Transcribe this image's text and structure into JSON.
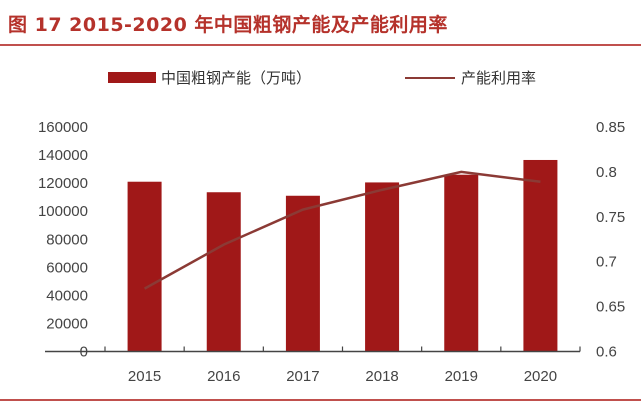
{
  "title": "图 17 2015-2020 年中国粗钢产能及产能利用率",
  "chart_data": {
    "type": "bar+line",
    "categories": [
      "2015",
      "2016",
      "2017",
      "2018",
      "2019",
      "2020"
    ],
    "series": [
      {
        "name": "中国粗钢产能（万吨）",
        "type": "bar",
        "axis": "left",
        "color": "#a01818",
        "values": [
          121000,
          113500,
          111000,
          120500,
          126000,
          136500
        ]
      },
      {
        "name": "产能利用率",
        "type": "line",
        "axis": "right",
        "color": "#8b3a35",
        "values": [
          0.67,
          0.719,
          0.758,
          0.78,
          0.8,
          0.789
        ]
      }
    ],
    "left_axis": {
      "ylim": [
        0,
        160000
      ],
      "ticks": [
        "0",
        "20000",
        "40000",
        "60000",
        "80000",
        "100000",
        "120000",
        "140000",
        "160000"
      ]
    },
    "right_axis": {
      "ylim": [
        0.6,
        0.85
      ],
      "ticks": [
        "0.6",
        "0.65",
        "0.7",
        "0.75",
        "0.8",
        "0.85"
      ]
    },
    "legend_position": "top",
    "grid": false
  }
}
